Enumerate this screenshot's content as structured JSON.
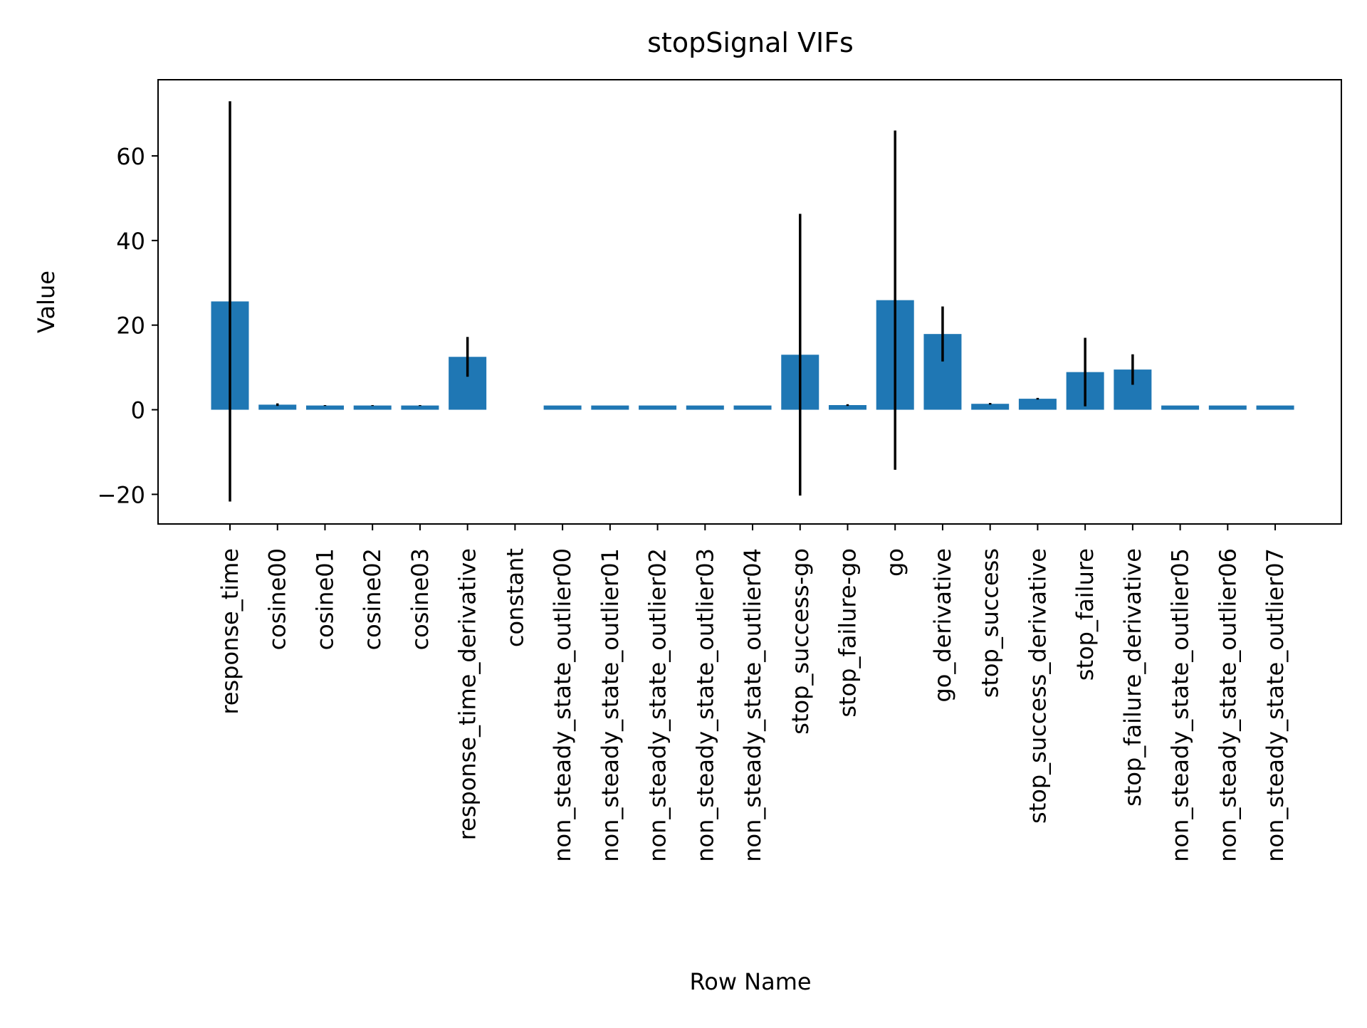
{
  "chart_data": {
    "type": "bar",
    "title": "stopSignal VIFs",
    "xlabel": "Row Name",
    "ylabel": "Value",
    "ylim": [
      -27,
      78
    ],
    "yticks": [
      -20,
      0,
      20,
      40,
      60
    ],
    "ytick_labels": [
      "−20",
      "0",
      "20",
      "40",
      "60"
    ],
    "grid": false,
    "bar_color": "#1f77b4",
    "errorbar_color": "#000000",
    "categories": [
      "response_time",
      "cosine00",
      "cosine01",
      "cosine02",
      "cosine03",
      "response_time_derivative",
      "constant",
      "non_steady_state_outlier00",
      "non_steady_state_outlier01",
      "non_steady_state_outlier02",
      "non_steady_state_outlier03",
      "non_steady_state_outlier04",
      "stop_success-go",
      "stop_failure-go",
      "go",
      "go_derivative",
      "stop_success",
      "stop_success_derivative",
      "stop_failure",
      "stop_failure_derivative",
      "non_steady_state_outlier05",
      "non_steady_state_outlier06",
      "non_steady_state_outlier07"
    ],
    "values": [
      25.6,
      1.2,
      1.0,
      1.0,
      1.0,
      12.5,
      0,
      1.0,
      1.0,
      1.0,
      1.0,
      1.0,
      13.0,
      1.1,
      25.9,
      17.9,
      1.4,
      2.6,
      8.9,
      9.5,
      1.0,
      1.0,
      1.0
    ],
    "errors": [
      47.3,
      0.3,
      0.1,
      0.1,
      0.1,
      4.7,
      0,
      0,
      0,
      0,
      0,
      0,
      33.3,
      0.2,
      40.1,
      6.5,
      0.2,
      0.2,
      8.1,
      3.6,
      0,
      0,
      0
    ]
  }
}
